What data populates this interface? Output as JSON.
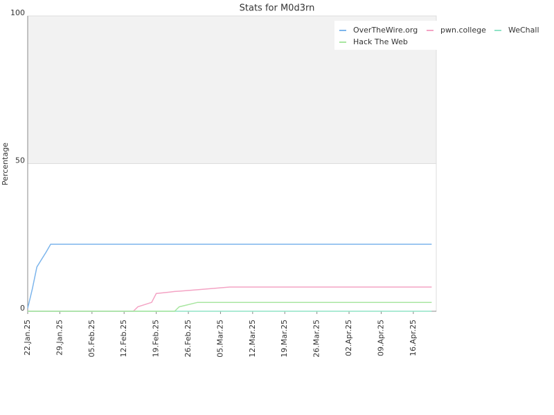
{
  "chart_data": {
    "type": "line",
    "title": "Stats for M0d3rn",
    "y_label": "Percentage",
    "x": [
      "2025-01-22",
      "2025-01-23",
      "2025-01-24",
      "2025-01-25",
      "2025-01-26",
      "2025-01-27",
      "2025-02-14",
      "2025-02-15",
      "2025-02-18",
      "2025-02-19",
      "2025-02-22",
      "2025-02-23",
      "2025-02-24",
      "2025-02-28",
      "2025-03-07",
      "2025-04-20"
    ],
    "series": [
      {
        "name": "OverTheWire.org",
        "color": "#7cb5ec",
        "values": [
          1,
          7.5,
          15,
          17.5,
          20,
          22.7,
          22.7,
          22.7,
          22.7,
          22.7,
          22.7,
          22.7,
          22.7,
          22.7,
          22.7,
          22.7
        ]
      },
      {
        "name": "pwn.college",
        "color": "#f4a3c4",
        "values": [
          0,
          0,
          0,
          0,
          0,
          0,
          0,
          1.5,
          3,
          6,
          6.5,
          6.7,
          6.8,
          7.3,
          8.2,
          8.2
        ]
      },
      {
        "name": "WeChall",
        "color": "#8fe3c6",
        "values": [
          0,
          0,
          0,
          0,
          0,
          0,
          0,
          0,
          0,
          0,
          0,
          0,
          0,
          0,
          0,
          0
        ]
      },
      {
        "name": "Hack The Web",
        "color": "#a8e6a0",
        "values": [
          0,
          0,
          0,
          0,
          0,
          0,
          0,
          0,
          0,
          0,
          0,
          0,
          1.5,
          3,
          3,
          3
        ]
      }
    ],
    "xlim": [
      "2025-01-22",
      "2025-04-21"
    ],
    "xticks": [
      {
        "value": "2025-01-22",
        "label": "22.Jan.25"
      },
      {
        "value": "2025-01-29",
        "label": "29.Jan.25"
      },
      {
        "value": "2025-02-05",
        "label": "05.Feb.25"
      },
      {
        "value": "2025-02-12",
        "label": "12.Feb.25"
      },
      {
        "value": "2025-02-19",
        "label": "19.Feb.25"
      },
      {
        "value": "2025-02-26",
        "label": "26.Feb.25"
      },
      {
        "value": "2025-03-05",
        "label": "05.Mar.25"
      },
      {
        "value": "2025-03-12",
        "label": "12.Mar.25"
      },
      {
        "value": "2025-03-19",
        "label": "19.Mar.25"
      },
      {
        "value": "2025-03-26",
        "label": "26.Mar.25"
      },
      {
        "value": "2025-04-02",
        "label": "02.Apr.25"
      },
      {
        "value": "2025-04-09",
        "label": "09.Apr.25"
      },
      {
        "value": "2025-04-16",
        "label": "16.Apr.25"
      }
    ],
    "ylim": [
      0,
      100
    ],
    "yticks": [
      0,
      50,
      100
    ],
    "grid": true,
    "legend": "top-right"
  }
}
